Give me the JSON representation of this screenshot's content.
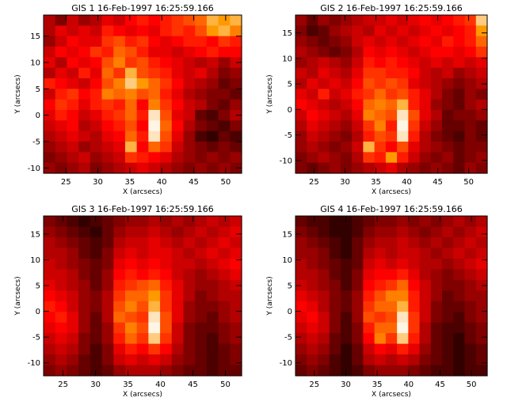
{
  "chart_data": [
    {
      "type": "heatmap",
      "title": "GIS 1 16-Feb-1997 16:25:59.166",
      "xlabel": "X (arcsecs)",
      "ylabel": "Y (arcsecs)",
      "xlim": [
        21.5,
        52.5
      ],
      "ylim": [
        -11.0,
        19.0
      ],
      "xticks": [
        25,
        30,
        35,
        40,
        45,
        50
      ],
      "yticks": [
        -10,
        -5,
        0,
        5,
        10,
        15
      ],
      "grid": [
        [
          0.35,
          0.25,
          0.4,
          0.3,
          0.35,
          0.45,
          0.4,
          0.5,
          0.55,
          0.5,
          0.55,
          0.6,
          0.65,
          0.7,
          0.85,
          0.8,
          0.85
        ],
        [
          0.35,
          0.45,
          0.4,
          0.45,
          0.4,
          0.55,
          0.5,
          0.45,
          0.5,
          0.45,
          0.55,
          0.6,
          0.55,
          0.65,
          0.8,
          0.85,
          0.75
        ],
        [
          0.3,
          0.4,
          0.5,
          0.45,
          0.45,
          0.6,
          0.65,
          0.55,
          0.6,
          0.5,
          0.45,
          0.5,
          0.55,
          0.55,
          0.5,
          0.6,
          0.55
        ],
        [
          0.4,
          0.5,
          0.45,
          0.5,
          0.6,
          0.55,
          0.7,
          0.65,
          0.55,
          0.45,
          0.45,
          0.4,
          0.45,
          0.5,
          0.55,
          0.5,
          0.5
        ],
        [
          0.45,
          0.35,
          0.5,
          0.45,
          0.5,
          0.65,
          0.75,
          0.6,
          0.65,
          0.55,
          0.5,
          0.45,
          0.4,
          0.35,
          0.4,
          0.3,
          0.4
        ],
        [
          0.35,
          0.45,
          0.4,
          0.55,
          0.45,
          0.7,
          0.6,
          0.85,
          0.65,
          0.6,
          0.55,
          0.45,
          0.4,
          0.45,
          0.35,
          0.25,
          0.3
        ],
        [
          0.55,
          0.5,
          0.45,
          0.4,
          0.5,
          0.65,
          0.75,
          0.9,
          0.8,
          0.7,
          0.6,
          0.5,
          0.4,
          0.35,
          0.3,
          0.2,
          0.25
        ],
        [
          0.4,
          0.55,
          0.6,
          0.5,
          0.55,
          0.75,
          0.7,
          0.75,
          0.65,
          0.7,
          0.55,
          0.45,
          0.35,
          0.3,
          0.25,
          0.25,
          0.2
        ],
        [
          0.5,
          0.6,
          0.55,
          0.45,
          0.55,
          0.6,
          0.55,
          0.7,
          0.5,
          0.75,
          0.6,
          0.5,
          0.4,
          0.35,
          0.25,
          0.2,
          0.3
        ],
        [
          0.45,
          0.55,
          0.5,
          0.4,
          0.45,
          0.55,
          0.6,
          0.7,
          0.55,
          0.95,
          0.65,
          0.45,
          0.4,
          0.2,
          0.15,
          0.25,
          0.35
        ],
        [
          0.4,
          0.45,
          0.5,
          0.35,
          0.4,
          0.5,
          0.55,
          0.65,
          0.5,
          0.98,
          0.7,
          0.5,
          0.35,
          0.25,
          0.2,
          0.15,
          0.25
        ],
        [
          0.35,
          0.4,
          0.45,
          0.4,
          0.35,
          0.45,
          0.5,
          0.7,
          0.55,
          0.95,
          0.65,
          0.45,
          0.3,
          0.15,
          0.1,
          0.2,
          0.15
        ],
        [
          0.3,
          0.35,
          0.4,
          0.3,
          0.35,
          0.4,
          0.45,
          0.85,
          0.5,
          0.7,
          0.6,
          0.4,
          0.3,
          0.25,
          0.2,
          0.25,
          0.2
        ],
        [
          0.25,
          0.3,
          0.35,
          0.4,
          0.3,
          0.35,
          0.4,
          0.6,
          0.55,
          0.5,
          0.45,
          0.35,
          0.3,
          0.25,
          0.3,
          0.25,
          0.3
        ],
        [
          0.3,
          0.25,
          0.3,
          0.35,
          0.25,
          0.3,
          0.35,
          0.4,
          0.45,
          0.4,
          0.35,
          0.3,
          0.25,
          0.3,
          0.25,
          0.3,
          0.25
        ]
      ]
    },
    {
      "type": "heatmap",
      "title": "GIS 2 16-Feb-1997 16:25:59.166",
      "xlabel": "X (arcsecs)",
      "ylabel": "Y (arcsecs)",
      "xlim": [
        22.0,
        53.0
      ],
      "ylim": [
        -12.5,
        18.5
      ],
      "xticks": [
        25,
        30,
        35,
        40,
        45,
        50
      ],
      "yticks": [
        -10,
        -5,
        0,
        5,
        10,
        15
      ],
      "grid": [
        [
          0.3,
          0.2,
          0.3,
          0.25,
          0.3,
          0.35,
          0.4,
          0.4,
          0.45,
          0.4,
          0.45,
          0.5,
          0.45,
          0.5,
          0.55,
          0.6,
          0.9
        ],
        [
          0.25,
          0.15,
          0.2,
          0.3,
          0.35,
          0.4,
          0.35,
          0.45,
          0.4,
          0.45,
          0.4,
          0.45,
          0.5,
          0.45,
          0.5,
          0.55,
          0.8
        ],
        [
          0.3,
          0.25,
          0.2,
          0.25,
          0.3,
          0.4,
          0.45,
          0.4,
          0.45,
          0.4,
          0.45,
          0.5,
          0.45,
          0.55,
          0.5,
          0.55,
          0.7
        ],
        [
          0.35,
          0.3,
          0.25,
          0.2,
          0.25,
          0.35,
          0.5,
          0.45,
          0.5,
          0.45,
          0.4,
          0.45,
          0.5,
          0.5,
          0.45,
          0.5,
          0.6
        ],
        [
          0.3,
          0.35,
          0.4,
          0.35,
          0.3,
          0.4,
          0.55,
          0.5,
          0.55,
          0.5,
          0.45,
          0.4,
          0.45,
          0.4,
          0.45,
          0.4,
          0.45
        ],
        [
          0.4,
          0.35,
          0.45,
          0.4,
          0.35,
          0.45,
          0.6,
          0.6,
          0.55,
          0.55,
          0.5,
          0.4,
          0.35,
          0.4,
          0.3,
          0.35,
          0.4
        ],
        [
          0.35,
          0.45,
          0.4,
          0.45,
          0.4,
          0.5,
          0.65,
          0.6,
          0.65,
          0.6,
          0.45,
          0.4,
          0.35,
          0.3,
          0.25,
          0.3,
          0.35
        ],
        [
          0.45,
          0.4,
          0.55,
          0.4,
          0.45,
          0.55,
          0.6,
          0.7,
          0.6,
          0.65,
          0.55,
          0.45,
          0.35,
          0.25,
          0.2,
          0.3,
          0.25
        ],
        [
          0.5,
          0.45,
          0.4,
          0.35,
          0.4,
          0.5,
          0.7,
          0.75,
          0.7,
          0.85,
          0.55,
          0.45,
          0.3,
          0.25,
          0.2,
          0.3,
          0.35
        ],
        [
          0.4,
          0.5,
          0.45,
          0.4,
          0.35,
          0.45,
          0.75,
          0.7,
          0.65,
          0.95,
          0.65,
          0.45,
          0.35,
          0.2,
          0.25,
          0.25,
          0.3
        ],
        [
          0.35,
          0.45,
          0.4,
          0.35,
          0.3,
          0.4,
          0.6,
          0.75,
          0.55,
          0.98,
          0.6,
          0.4,
          0.3,
          0.2,
          0.2,
          0.25,
          0.2
        ],
        [
          0.3,
          0.4,
          0.35,
          0.3,
          0.25,
          0.35,
          0.55,
          0.65,
          0.6,
          0.95,
          0.55,
          0.35,
          0.25,
          0.2,
          0.15,
          0.25,
          0.2
        ],
        [
          0.3,
          0.35,
          0.3,
          0.25,
          0.3,
          0.4,
          0.85,
          0.6,
          0.5,
          0.65,
          0.45,
          0.35,
          0.3,
          0.25,
          0.2,
          0.25,
          0.25
        ],
        [
          0.25,
          0.3,
          0.35,
          0.3,
          0.25,
          0.35,
          0.6,
          0.55,
          0.8,
          0.55,
          0.4,
          0.3,
          0.25,
          0.3,
          0.2,
          0.25,
          0.3
        ],
        [
          0.25,
          0.2,
          0.25,
          0.3,
          0.25,
          0.3,
          0.35,
          0.4,
          0.45,
          0.35,
          0.3,
          0.25,
          0.3,
          0.25,
          0.2,
          0.3,
          0.25
        ]
      ]
    },
    {
      "type": "heatmap",
      "title": "GIS 3 16-Feb-1997 16:25:59.166",
      "xlabel": "X (arcsecs)",
      "ylabel": "Y (arcsecs)",
      "xlim": [
        22.0,
        52.5
      ],
      "ylim": [
        -12.5,
        18.5
      ],
      "xticks": [
        25,
        30,
        35,
        40,
        45,
        50
      ],
      "yticks": [
        -10,
        -5,
        0,
        5,
        10,
        15
      ],
      "grid": [
        [
          0.25,
          0.2,
          0.15,
          0.1,
          0.15,
          0.2,
          0.25,
          0.3,
          0.3,
          0.35,
          0.3,
          0.35,
          0.3,
          0.35,
          0.4,
          0.35,
          0.4
        ],
        [
          0.3,
          0.25,
          0.2,
          0.15,
          0.1,
          0.2,
          0.3,
          0.35,
          0.35,
          0.4,
          0.35,
          0.3,
          0.35,
          0.4,
          0.35,
          0.4,
          0.45
        ],
        [
          0.35,
          0.3,
          0.25,
          0.2,
          0.15,
          0.2,
          0.35,
          0.4,
          0.4,
          0.45,
          0.4,
          0.35,
          0.4,
          0.35,
          0.4,
          0.45,
          0.4
        ],
        [
          0.35,
          0.35,
          0.3,
          0.2,
          0.15,
          0.25,
          0.4,
          0.45,
          0.4,
          0.45,
          0.45,
          0.4,
          0.35,
          0.4,
          0.45,
          0.4,
          0.45
        ],
        [
          0.4,
          0.35,
          0.3,
          0.25,
          0.2,
          0.25,
          0.45,
          0.5,
          0.45,
          0.5,
          0.45,
          0.4,
          0.4,
          0.35,
          0.4,
          0.45,
          0.5
        ],
        [
          0.4,
          0.4,
          0.35,
          0.25,
          0.2,
          0.3,
          0.5,
          0.55,
          0.5,
          0.55,
          0.5,
          0.4,
          0.35,
          0.3,
          0.35,
          0.4,
          0.45
        ],
        [
          0.45,
          0.4,
          0.35,
          0.3,
          0.2,
          0.3,
          0.55,
          0.6,
          0.65,
          0.7,
          0.55,
          0.45,
          0.35,
          0.3,
          0.3,
          0.35,
          0.4
        ],
        [
          0.5,
          0.45,
          0.4,
          0.3,
          0.25,
          0.35,
          0.6,
          0.7,
          0.7,
          0.8,
          0.6,
          0.45,
          0.35,
          0.25,
          0.3,
          0.35,
          0.35
        ],
        [
          0.55,
          0.5,
          0.4,
          0.3,
          0.25,
          0.35,
          0.65,
          0.75,
          0.65,
          0.85,
          0.6,
          0.45,
          0.3,
          0.25,
          0.25,
          0.3,
          0.35
        ],
        [
          0.5,
          0.55,
          0.45,
          0.3,
          0.2,
          0.35,
          0.7,
          0.65,
          0.6,
          0.95,
          0.65,
          0.45,
          0.3,
          0.25,
          0.2,
          0.3,
          0.35
        ],
        [
          0.45,
          0.5,
          0.45,
          0.3,
          0.2,
          0.3,
          0.6,
          0.75,
          0.65,
          0.98,
          0.65,
          0.4,
          0.25,
          0.2,
          0.2,
          0.25,
          0.3
        ],
        [
          0.4,
          0.45,
          0.4,
          0.25,
          0.2,
          0.3,
          0.55,
          0.7,
          0.6,
          0.9,
          0.6,
          0.4,
          0.25,
          0.2,
          0.15,
          0.25,
          0.3
        ],
        [
          0.35,
          0.4,
          0.35,
          0.25,
          0.15,
          0.25,
          0.45,
          0.55,
          0.5,
          0.6,
          0.5,
          0.35,
          0.25,
          0.2,
          0.15,
          0.2,
          0.25
        ],
        [
          0.3,
          0.35,
          0.3,
          0.2,
          0.15,
          0.25,
          0.4,
          0.45,
          0.4,
          0.45,
          0.4,
          0.3,
          0.25,
          0.2,
          0.15,
          0.2,
          0.25
        ],
        [
          0.25,
          0.3,
          0.25,
          0.2,
          0.15,
          0.2,
          0.3,
          0.35,
          0.35,
          0.35,
          0.3,
          0.25,
          0.2,
          0.2,
          0.15,
          0.2,
          0.2
        ]
      ]
    },
    {
      "type": "heatmap",
      "title": "GIS 4 16-Feb-1997 16:25:59.166",
      "xlabel": "X (arcsecs)",
      "ylabel": "Y (arcsecs)",
      "xlim": [
        22.0,
        52.5
      ],
      "ylim": [
        -12.5,
        18.5
      ],
      "xticks": [
        25,
        30,
        35,
        40,
        45,
        50
      ],
      "yticks": [
        -10,
        -5,
        0,
        5,
        10,
        15
      ],
      "grid": [
        [
          0.2,
          0.15,
          0.15,
          0.1,
          0.1,
          0.15,
          0.2,
          0.25,
          0.25,
          0.3,
          0.25,
          0.3,
          0.25,
          0.3,
          0.35,
          0.3,
          0.35
        ],
        [
          0.25,
          0.2,
          0.15,
          0.1,
          0.1,
          0.15,
          0.25,
          0.3,
          0.3,
          0.35,
          0.3,
          0.25,
          0.3,
          0.35,
          0.3,
          0.35,
          0.4
        ],
        [
          0.3,
          0.25,
          0.2,
          0.15,
          0.1,
          0.2,
          0.3,
          0.35,
          0.35,
          0.4,
          0.35,
          0.3,
          0.35,
          0.3,
          0.35,
          0.4,
          0.35
        ],
        [
          0.3,
          0.3,
          0.25,
          0.15,
          0.1,
          0.2,
          0.35,
          0.4,
          0.35,
          0.4,
          0.4,
          0.35,
          0.3,
          0.35,
          0.4,
          0.35,
          0.4
        ],
        [
          0.35,
          0.3,
          0.25,
          0.2,
          0.15,
          0.2,
          0.4,
          0.45,
          0.4,
          0.45,
          0.4,
          0.35,
          0.35,
          0.3,
          0.35,
          0.4,
          0.45
        ],
        [
          0.35,
          0.35,
          0.3,
          0.2,
          0.15,
          0.25,
          0.45,
          0.5,
          0.5,
          0.55,
          0.45,
          0.35,
          0.3,
          0.25,
          0.3,
          0.35,
          0.4
        ],
        [
          0.4,
          0.35,
          0.3,
          0.25,
          0.15,
          0.25,
          0.5,
          0.55,
          0.6,
          0.7,
          0.5,
          0.4,
          0.3,
          0.25,
          0.25,
          0.3,
          0.35
        ],
        [
          0.45,
          0.4,
          0.35,
          0.25,
          0.2,
          0.3,
          0.55,
          0.65,
          0.75,
          0.75,
          0.55,
          0.4,
          0.3,
          0.2,
          0.25,
          0.3,
          0.3
        ],
        [
          0.5,
          0.45,
          0.35,
          0.25,
          0.2,
          0.3,
          0.6,
          0.7,
          0.7,
          0.85,
          0.55,
          0.4,
          0.25,
          0.2,
          0.2,
          0.25,
          0.3
        ],
        [
          0.45,
          0.5,
          0.4,
          0.25,
          0.15,
          0.3,
          0.65,
          0.6,
          0.65,
          0.95,
          0.6,
          0.4,
          0.25,
          0.2,
          0.15,
          0.25,
          0.3
        ],
        [
          0.4,
          0.45,
          0.4,
          0.25,
          0.15,
          0.25,
          0.55,
          0.7,
          0.7,
          0.98,
          0.6,
          0.35,
          0.2,
          0.15,
          0.15,
          0.2,
          0.25
        ],
        [
          0.35,
          0.4,
          0.35,
          0.2,
          0.15,
          0.25,
          0.5,
          0.75,
          0.6,
          0.9,
          0.55,
          0.35,
          0.2,
          0.15,
          0.1,
          0.2,
          0.25
        ],
        [
          0.3,
          0.35,
          0.3,
          0.2,
          0.1,
          0.2,
          0.4,
          0.5,
          0.45,
          0.55,
          0.45,
          0.3,
          0.2,
          0.15,
          0.1,
          0.15,
          0.2
        ],
        [
          0.25,
          0.3,
          0.25,
          0.15,
          0.1,
          0.2,
          0.35,
          0.4,
          0.35,
          0.4,
          0.35,
          0.25,
          0.2,
          0.15,
          0.1,
          0.15,
          0.2
        ],
        [
          0.2,
          0.25,
          0.2,
          0.15,
          0.1,
          0.15,
          0.25,
          0.3,
          0.3,
          0.3,
          0.25,
          0.2,
          0.15,
          0.15,
          0.1,
          0.15,
          0.15
        ]
      ]
    }
  ]
}
